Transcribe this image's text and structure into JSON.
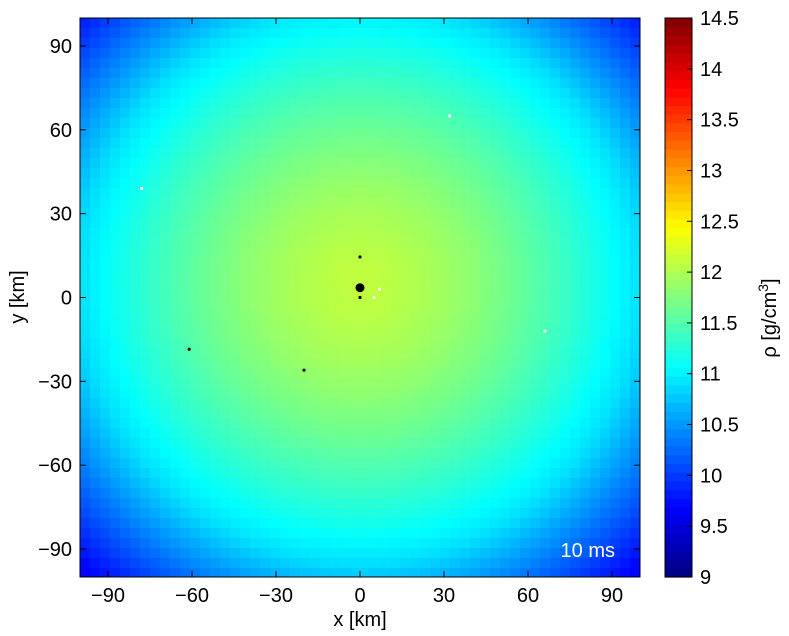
{
  "chart_data": {
    "type": "heatmap",
    "title": "",
    "xlabel": "x [km]",
    "ylabel": "y [km]",
    "xlim": [
      -100,
      100
    ],
    "ylim": [
      -100,
      100
    ],
    "x_ticks": [
      -90,
      -60,
      -30,
      0,
      30,
      60,
      90
    ],
    "y_ticks": [
      -90,
      -60,
      -30,
      0,
      30,
      60,
      90
    ],
    "grid": false,
    "field": "log10 density, roughly radially symmetric, peak near the center and falling toward the corners",
    "field_center": [
      0,
      5
    ],
    "field_center_value": 12.1,
    "field_edge_value": 10.9,
    "field_corner_value": 9.7,
    "colormap": "jet",
    "colorbar": {
      "label_prefix": "ρ [g/cm",
      "label_exponent": "3",
      "label_suffix": "]",
      "range": [
        9,
        14.5
      ],
      "ticks": [
        9,
        9.5,
        10,
        10.5,
        11,
        11.5,
        12,
        12.5,
        13,
        13.5,
        14,
        14.5
      ]
    },
    "annotation": "10 ms",
    "markers": [
      {
        "x": 0,
        "y": 3.5,
        "color": "#000000",
        "size": "large"
      },
      {
        "x": 0,
        "y": 14.5,
        "color": "#000000",
        "size": "small"
      },
      {
        "x": 0,
        "y": 0,
        "color": "#000000",
        "size": "small"
      },
      {
        "x": -61,
        "y": -18.5,
        "color": "#000000",
        "size": "small"
      },
      {
        "x": -20,
        "y": -26,
        "color": "#000000",
        "size": "small"
      },
      {
        "x": 5,
        "y": 0,
        "color": "#ffffff",
        "size": "small"
      },
      {
        "x": 7,
        "y": 3,
        "color": "#ffffff",
        "size": "small"
      },
      {
        "x": 32,
        "y": 65,
        "color": "#ffffff",
        "size": "small"
      },
      {
        "x": -78,
        "y": 39,
        "color": "#ffffff",
        "size": "small"
      },
      {
        "x": 66,
        "y": -12,
        "color": "#ffffff",
        "size": "small"
      }
    ]
  }
}
